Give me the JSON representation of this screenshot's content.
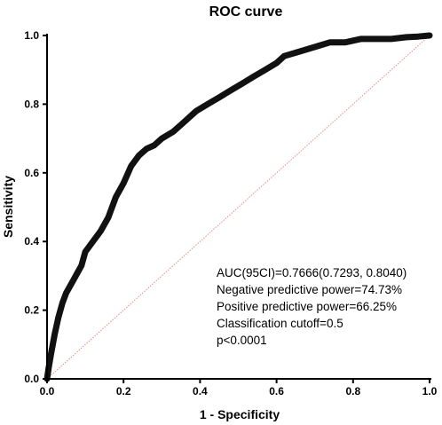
{
  "chart_data": {
    "type": "line",
    "title": "ROC curve",
    "xlabel": "1 - Specificity",
    "ylabel": "Sensitivity",
    "xlim": [
      0,
      1
    ],
    "ylim": [
      0,
      1
    ],
    "x_ticks": [
      "0.0",
      "0.2",
      "0.4",
      "0.6",
      "0.8",
      "1.0"
    ],
    "y_ticks": [
      "0.0",
      "0.2",
      "0.4",
      "0.6",
      "0.8",
      "1.0"
    ],
    "grid": false,
    "series": [
      {
        "color": "#111111",
        "x": [
          0,
          0.004,
          0.01,
          0.02,
          0.03,
          0.04,
          0.05,
          0.06,
          0.07,
          0.08,
          0.09,
          0.1,
          0.12,
          0.14,
          0.16,
          0.18,
          0.2,
          0.22,
          0.24,
          0.26,
          0.28,
          0.3,
          0.33,
          0.36,
          0.39,
          0.42,
          0.45,
          0.48,
          0.51,
          0.54,
          0.57,
          0.6,
          0.62,
          0.65,
          0.68,
          0.71,
          0.74,
          0.78,
          0.82,
          0.86,
          0.9,
          0.94,
          0.97,
          1.0
        ],
        "y": [
          0,
          0.03,
          0.07,
          0.13,
          0.18,
          0.22,
          0.25,
          0.27,
          0.29,
          0.31,
          0.33,
          0.37,
          0.4,
          0.43,
          0.47,
          0.53,
          0.57,
          0.62,
          0.65,
          0.67,
          0.68,
          0.7,
          0.72,
          0.75,
          0.78,
          0.8,
          0.82,
          0.84,
          0.86,
          0.88,
          0.9,
          0.92,
          0.94,
          0.95,
          0.96,
          0.97,
          0.98,
          0.98,
          0.99,
          0.99,
          0.99,
          0.995,
          0.997,
          1.0
        ]
      },
      {
        "color": "#e88a8a",
        "line": "dotted",
        "x": [
          0,
          1
        ],
        "y": [
          0,
          1
        ]
      }
    ],
    "annotations": [
      "AUC(95CI)=0.7666(0.7293, 0.8040)",
      "Negative predictive power=74.73%",
      "Positive predictive power=66.25%",
      "Classification cutoff=0.5",
      "p<0.0001"
    ]
  }
}
